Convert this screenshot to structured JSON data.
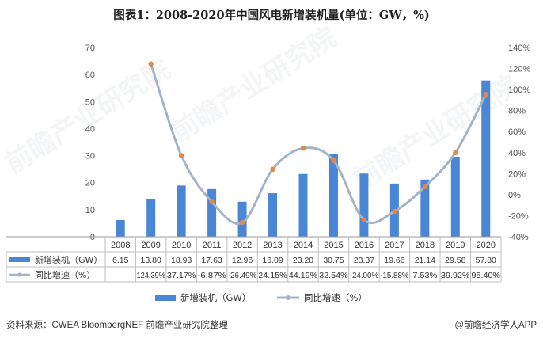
{
  "title": "图表1：2008-2020年中国风电新增装机量(单位：GW，%)",
  "footer": {
    "source": "资料来源：CWEA BloombergNEF 前瞻产业研究院整理",
    "brand": "@前瞻经济学人APP"
  },
  "watermark": "前瞻产业研究院",
  "colors": {
    "bar": "#4a86d6",
    "line": "#a4b4c6",
    "marker": "#e0884a"
  },
  "chart_data": {
    "type": "bar",
    "title": "图表1：2008-2020年中国风电新增装机量(单位：GW，%)",
    "categories": [
      "2008",
      "2009",
      "2010",
      "2011",
      "2012",
      "2013",
      "2014",
      "2015",
      "2016",
      "2017",
      "2018",
      "2019",
      "2020"
    ],
    "yticks_left": [
      "0",
      "10",
      "20",
      "30",
      "40",
      "50",
      "60",
      "70"
    ],
    "yticks_right": [
      "-40%",
      "-20%",
      "0%",
      "20%",
      "40%",
      "60%",
      "80%",
      "100%",
      "120%",
      "140%"
    ],
    "ylim_left": [
      0,
      70
    ],
    "ylim_right": [
      -40,
      140
    ],
    "series": [
      {
        "name": "新增装机（GW）",
        "type": "bar",
        "axis": "left",
        "values": [
          6.15,
          13.8,
          18.93,
          17.63,
          12.96,
          16.09,
          23.2,
          30.75,
          23.37,
          19.66,
          21.14,
          29.58,
          57.8
        ],
        "labels": [
          "6.15",
          "13.80",
          "18.93",
          "17.63",
          "12.96",
          "16.09",
          "23.20",
          "30.75",
          "23.37",
          "19.66",
          "21.14",
          "29.58",
          "57.80"
        ]
      },
      {
        "name": "同比增速（%）",
        "type": "line",
        "axis": "right",
        "values": [
          null,
          124.39,
          37.17,
          -6.87,
          -26.49,
          24.15,
          44.19,
          32.54,
          -24.0,
          -15.88,
          7.53,
          39.92,
          95.4
        ],
        "labels": [
          "",
          "124.39%",
          "37.17%",
          "-6.87%",
          "-26.49%",
          "24.15%",
          "44.19%",
          "32.54%",
          "-24.00%",
          "-15.88%",
          "7.53%",
          "39.92%",
          "95.40%"
        ]
      }
    ],
    "legend": [
      "新增装机（GW）",
      "同比增速（%）"
    ],
    "legend_position": "bottom",
    "grid": false
  }
}
